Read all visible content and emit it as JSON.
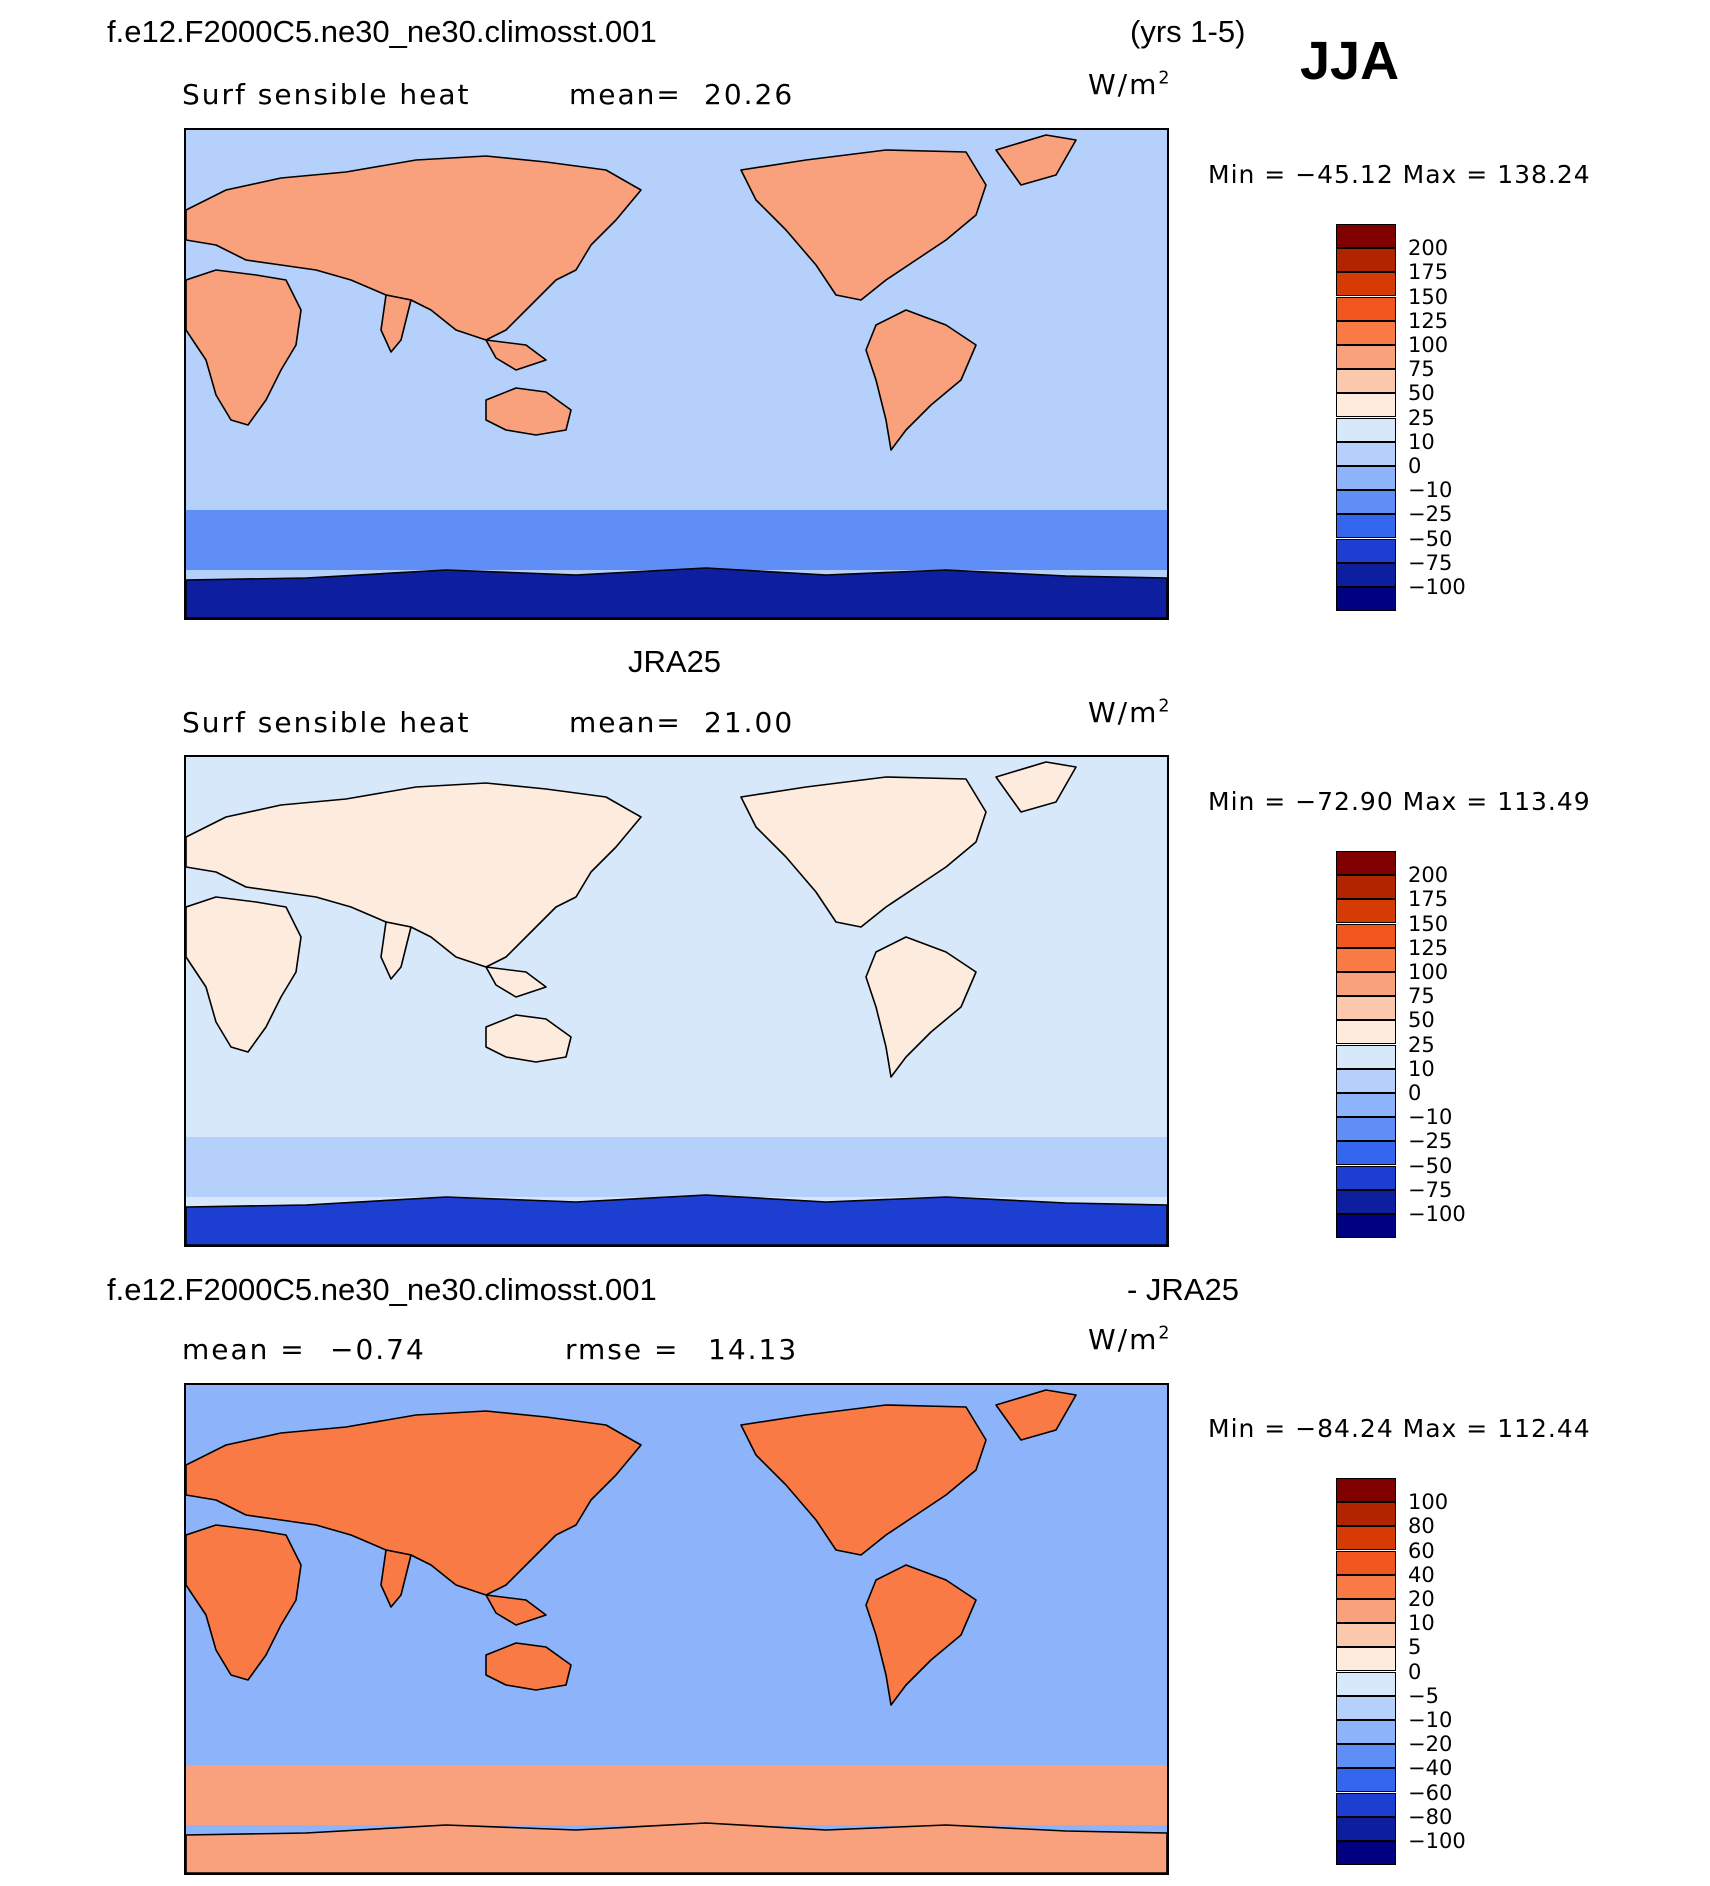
{
  "page": {
    "season": "JJA",
    "colors": {
      "ocean_cool": "#8fb3ff",
      "land_warm": "#f9c09f",
      "coast": "#000000"
    }
  },
  "panels": [
    {
      "id": "model",
      "header_left": "f.e12.F2000C5.ne30_ne30.climosst.001",
      "header_right": "(yrs 1-5)",
      "stat_label": "Surf  sensible  heat",
      "stat2_label": "mean=",
      "stat2_value": "20.26",
      "units_base": "W/m",
      "units_exp": "2",
      "minmax": "Min  =  −45.12  Max  =  138.24",
      "levels": [
        "200",
        "175",
        "150",
        "125",
        "100",
        "75",
        "50",
        "25",
        "10",
        "0",
        "−10",
        "−25",
        "−50",
        "−75",
        "−100"
      ],
      "field": {
        "land_level": 5,
        "ocean_level": 9,
        "southern_ocean_level": 11,
        "antarctic_level": 14
      }
    },
    {
      "id": "obs",
      "header_center": "JRA25",
      "stat_label": "Surf  sensible  heat",
      "stat2_label": "mean=",
      "stat2_value": "21.00",
      "units_base": "W/m",
      "units_exp": "2",
      "minmax": "Min  =  −72.90  Max  =  113.49",
      "levels": [
        "200",
        "175",
        "150",
        "125",
        "100",
        "75",
        "50",
        "25",
        "10",
        "0",
        "−10",
        "−25",
        "−50",
        "−75",
        "−100"
      ],
      "field": {
        "land_level": 7,
        "ocean_level": 8,
        "southern_ocean_level": 9,
        "antarctic_level": 13
      }
    },
    {
      "id": "diff",
      "header_left": "f.e12.F2000C5.ne30_ne30.climosst.001",
      "header_right": "- JRA25",
      "stat_label": "mean  =",
      "stat_value": "−0.74",
      "stat2_label": "rmse  =",
      "stat2_value": "14.13",
      "units_base": "W/m",
      "units_exp": "2",
      "minmax": "Min  =  −84.24  Max  =  112.44",
      "levels": [
        "100",
        "80",
        "60",
        "40",
        "20",
        "10",
        "5",
        "0",
        "−5",
        "−10",
        "−20",
        "−40",
        "−60",
        "−80",
        "−100"
      ],
      "field": {
        "land_level": 4,
        "ocean_level": 10,
        "southern_ocean_level": 5,
        "antarctic_level": 5
      }
    }
  ],
  "colormap": [
    "#800000",
    "#b22400",
    "#d63a05",
    "#f0561e",
    "#fa7a46",
    "#f9a07c",
    "#fbc8ad",
    "#fdebdd",
    "#d8e8fb",
    "#b5d0fb",
    "#8db3fb",
    "#5f8ef6",
    "#3466ee",
    "#1c3fd2",
    "#0d1f9f",
    "#000080"
  ]
}
